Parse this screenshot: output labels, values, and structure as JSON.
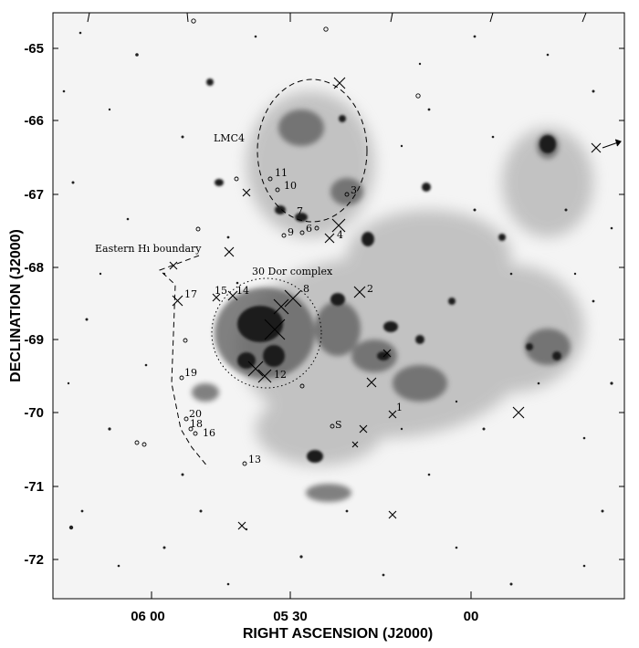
{
  "axes": {
    "ylabel": "DECLINATION (J2000)",
    "xlabel": "RIGHT ASCENSION (J2000)",
    "dec_ticks": [
      "-65",
      "-66",
      "-67",
      "-68",
      "-69",
      "-70",
      "-71",
      "-72"
    ],
    "ra_ticks": [
      "06 00",
      "05 30",
      "00"
    ]
  },
  "labels": {
    "lmc4": "LMC4",
    "eastern_boundary": "Eastern Hı boundary",
    "complex": "30 Dor complex"
  },
  "markers": {
    "m1": "1",
    "m2": "2",
    "m3": "3",
    "m4": "4",
    "m5": "5",
    "m6": "6",
    "m7": "7",
    "m8": "8",
    "m9": "9",
    "m10": "10",
    "m11": "11",
    "m12": "12",
    "m13": "13",
    "m14": "14",
    "m15": "15",
    "m16": "16",
    "m17": "17",
    "m18": "18",
    "m19": "19",
    "m20": "20",
    "mS": "S"
  },
  "colors": {
    "sky": "#f4f4f4",
    "nebula": "#5a5a5a",
    "dense": "#1e1e1e",
    "frame": "#000000"
  }
}
